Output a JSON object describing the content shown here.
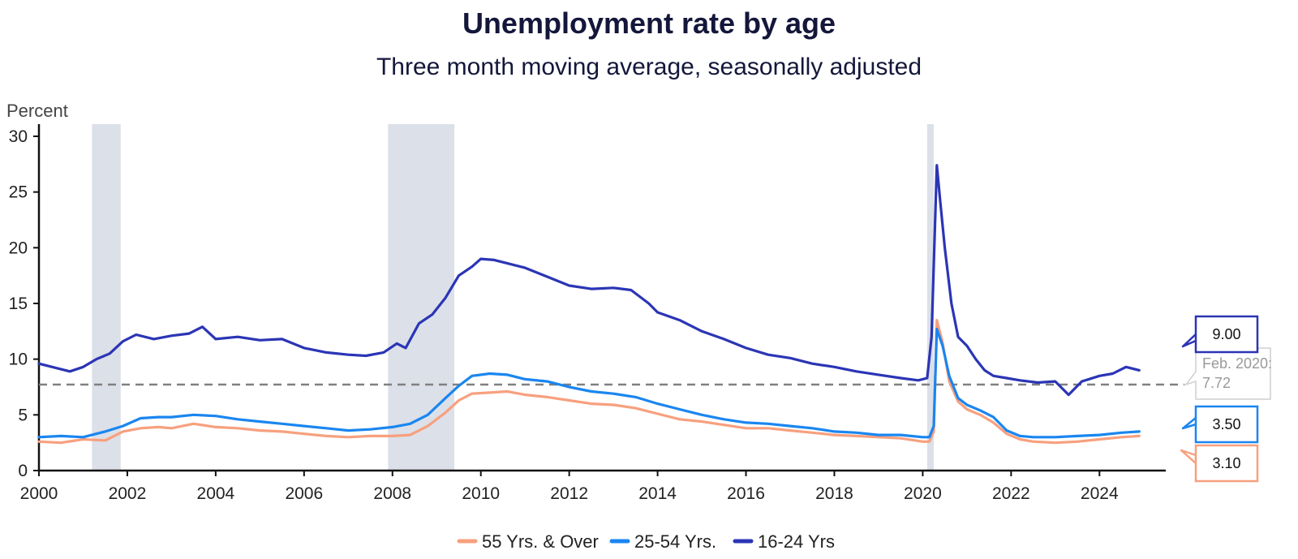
{
  "chart_data": {
    "type": "line",
    "title": "Unemployment rate by age",
    "subtitle": "Three month moving average, seasonally adjusted",
    "ylabel": "Percent",
    "xlabel": "",
    "ylim": [
      0,
      30
    ],
    "xlim": [
      2000,
      2025.5
    ],
    "y_ticks": [
      0,
      5,
      10,
      15,
      20,
      25,
      30
    ],
    "x_ticks": [
      2000,
      2002,
      2004,
      2006,
      2008,
      2010,
      2012,
      2014,
      2016,
      2018,
      2020,
      2022,
      2024
    ],
    "recessions": [
      {
        "start": 2001.2,
        "end": 2001.85
      },
      {
        "start": 2007.9,
        "end": 2009.4
      },
      {
        "start": 2020.1,
        "end": 2020.25
      }
    ],
    "reference_line": {
      "value": 7.72,
      "label": "Feb. 2020: 7.72"
    },
    "legend": {
      "position": "bottom-center"
    },
    "series": [
      {
        "name": "55 Yrs. & Over",
        "color": "#f7a07e",
        "end_label": "3.10",
        "x": [
          2000.0,
          2000.5,
          2001.0,
          2001.5,
          2001.9,
          2002.3,
          2002.7,
          2003.0,
          2003.5,
          2004.0,
          2004.5,
          2005.0,
          2005.5,
          2006.0,
          2006.5,
          2007.0,
          2007.5,
          2008.0,
          2008.4,
          2008.8,
          2009.2,
          2009.5,
          2009.8,
          2010.2,
          2010.6,
          2011.0,
          2011.5,
          2012.0,
          2012.5,
          2013.0,
          2013.5,
          2014.0,
          2014.5,
          2015.0,
          2015.5,
          2016.0,
          2016.5,
          2017.0,
          2017.5,
          2018.0,
          2018.5,
          2019.0,
          2019.5,
          2020.0,
          2020.15,
          2020.25,
          2020.32,
          2020.45,
          2020.6,
          2020.8,
          2021.0,
          2021.3,
          2021.6,
          2021.9,
          2022.2,
          2022.5,
          2023.0,
          2023.5,
          2024.0,
          2024.5,
          2024.9
        ],
        "values": [
          2.6,
          2.5,
          2.8,
          2.7,
          3.5,
          3.8,
          3.9,
          3.8,
          4.2,
          3.9,
          3.8,
          3.6,
          3.5,
          3.3,
          3.1,
          3.0,
          3.1,
          3.1,
          3.2,
          4.0,
          5.2,
          6.3,
          6.9,
          7.0,
          7.1,
          6.8,
          6.6,
          6.3,
          6.0,
          5.9,
          5.6,
          5.1,
          4.6,
          4.4,
          4.1,
          3.8,
          3.8,
          3.6,
          3.4,
          3.2,
          3.1,
          3.0,
          2.9,
          2.6,
          2.6,
          3.5,
          13.5,
          11.5,
          8.0,
          6.2,
          5.5,
          5.0,
          4.3,
          3.3,
          2.8,
          2.6,
          2.5,
          2.6,
          2.8,
          3.0,
          3.1
        ]
      },
      {
        "name": "25-54 Yrs.",
        "color": "#1a86f0",
        "end_label": "3.50",
        "x": [
          2000.0,
          2000.5,
          2001.0,
          2001.5,
          2001.9,
          2002.3,
          2002.7,
          2003.0,
          2003.5,
          2004.0,
          2004.5,
          2005.0,
          2005.5,
          2006.0,
          2006.5,
          2007.0,
          2007.5,
          2008.0,
          2008.4,
          2008.8,
          2009.2,
          2009.5,
          2009.8,
          2010.2,
          2010.6,
          2011.0,
          2011.5,
          2012.0,
          2012.5,
          2013.0,
          2013.5,
          2014.0,
          2014.5,
          2015.0,
          2015.5,
          2016.0,
          2016.5,
          2017.0,
          2017.5,
          2018.0,
          2018.5,
          2019.0,
          2019.5,
          2020.0,
          2020.15,
          2020.25,
          2020.32,
          2020.45,
          2020.6,
          2020.8,
          2021.0,
          2021.3,
          2021.6,
          2021.9,
          2022.2,
          2022.5,
          2023.0,
          2023.5,
          2024.0,
          2024.5,
          2024.9
        ],
        "values": [
          3.0,
          3.1,
          3.0,
          3.5,
          4.0,
          4.7,
          4.8,
          4.8,
          5.0,
          4.9,
          4.6,
          4.4,
          4.2,
          4.0,
          3.8,
          3.6,
          3.7,
          3.9,
          4.2,
          5.0,
          6.5,
          7.6,
          8.5,
          8.7,
          8.6,
          8.2,
          8.0,
          7.5,
          7.1,
          6.9,
          6.6,
          6.0,
          5.5,
          5.0,
          4.6,
          4.3,
          4.2,
          4.0,
          3.8,
          3.5,
          3.4,
          3.2,
          3.2,
          3.0,
          3.0,
          4.0,
          12.7,
          11.2,
          8.5,
          6.5,
          5.9,
          5.4,
          4.8,
          3.6,
          3.1,
          3.0,
          3.0,
          3.1,
          3.2,
          3.4,
          3.5
        ]
      },
      {
        "name": "16-24 Yrs",
        "color": "#2b35b5",
        "end_label": "9.00",
        "x": [
          2000.0,
          2000.3,
          2000.7,
          2001.0,
          2001.3,
          2001.6,
          2001.9,
          2002.2,
          2002.6,
          2003.0,
          2003.4,
          2003.7,
          2004.0,
          2004.5,
          2005.0,
          2005.5,
          2006.0,
          2006.5,
          2007.0,
          2007.4,
          2007.8,
          2008.1,
          2008.3,
          2008.6,
          2008.9,
          2009.2,
          2009.5,
          2009.8,
          2010.0,
          2010.3,
          2010.6,
          2011.0,
          2011.5,
          2012.0,
          2012.5,
          2013.0,
          2013.4,
          2013.8,
          2014.0,
          2014.5,
          2015.0,
          2015.5,
          2016.0,
          2016.5,
          2017.0,
          2017.5,
          2018.0,
          2018.5,
          2019.0,
          2019.5,
          2019.9,
          2020.1,
          2020.2,
          2020.32,
          2020.4,
          2020.5,
          2020.65,
          2020.8,
          2021.0,
          2021.2,
          2021.4,
          2021.6,
          2021.9,
          2022.2,
          2022.6,
          2023.0,
          2023.3,
          2023.6,
          2024.0,
          2024.3,
          2024.6,
          2024.9
        ],
        "values": [
          9.6,
          9.3,
          8.9,
          9.3,
          10.0,
          10.5,
          11.6,
          12.2,
          11.8,
          12.1,
          12.3,
          12.9,
          11.8,
          12.0,
          11.7,
          11.8,
          11.0,
          10.6,
          10.4,
          10.3,
          10.6,
          11.4,
          11.0,
          13.2,
          14.0,
          15.5,
          17.5,
          18.3,
          19.0,
          18.9,
          18.6,
          18.2,
          17.4,
          16.6,
          16.3,
          16.4,
          16.2,
          15.0,
          14.2,
          13.5,
          12.5,
          11.8,
          11.0,
          10.4,
          10.1,
          9.6,
          9.3,
          8.9,
          8.6,
          8.3,
          8.1,
          8.3,
          12.0,
          27.4,
          24.0,
          20.0,
          15.0,
          12.0,
          11.2,
          10.0,
          9.0,
          8.5,
          8.3,
          8.1,
          7.9,
          8.0,
          6.8,
          8.0,
          8.5,
          8.7,
          9.3,
          9.0
        ]
      }
    ]
  }
}
